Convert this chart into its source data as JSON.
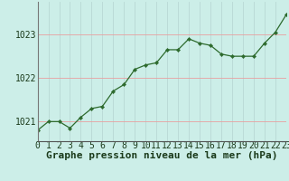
{
  "hours": [
    0,
    1,
    2,
    3,
    4,
    5,
    6,
    7,
    8,
    9,
    10,
    11,
    12,
    13,
    14,
    15,
    16,
    17,
    18,
    19,
    20,
    21,
    22,
    23
  ],
  "pressure": [
    1020.8,
    1021.0,
    1021.0,
    1020.85,
    1021.1,
    1021.3,
    1021.35,
    1021.7,
    1021.85,
    1022.2,
    1022.3,
    1022.35,
    1022.65,
    1022.65,
    1022.9,
    1022.8,
    1022.75,
    1022.55,
    1022.5,
    1022.5,
    1022.5,
    1022.8,
    1023.05,
    1023.45
  ],
  "line_color": "#2d6a2d",
  "marker_color": "#2d6a2d",
  "bg_color": "#cceee8",
  "grid_color_v": "#b8d8d4",
  "grid_color_h": "#e8a0a0",
  "xlabel": "Graphe pression niveau de la mer (hPa)",
  "yticks": [
    1021,
    1022,
    1023
  ],
  "ylim": [
    1020.55,
    1023.75
  ],
  "xlim": [
    0,
    23
  ],
  "xlabel_color": "#1a3a1a",
  "xlabel_fontsize": 8,
  "tick_fontsize": 7,
  "tick_color": "#1a3a1a"
}
